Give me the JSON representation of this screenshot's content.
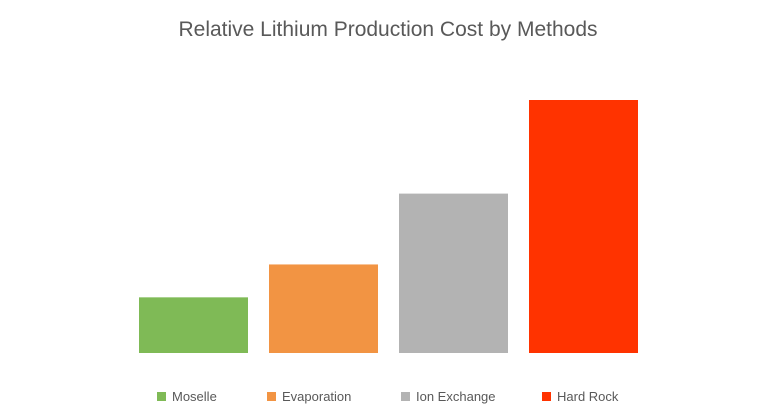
{
  "chart_data": {
    "type": "bar",
    "title": "Relative Lithium Production Cost by Methods",
    "xlabel": "",
    "ylabel": "",
    "categories": [
      "Moselle",
      "Evaporation",
      "Ion Exchange",
      "Hard Rock"
    ],
    "values": [
      22,
      35,
      63,
      100
    ],
    "colors": [
      "#7fba56",
      "#f29443",
      "#b3b3b3",
      "#ff3300"
    ],
    "ylim": [
      0,
      100
    ],
    "grid": false,
    "axis_ticks_visible": false,
    "legend_position": "bottom"
  }
}
